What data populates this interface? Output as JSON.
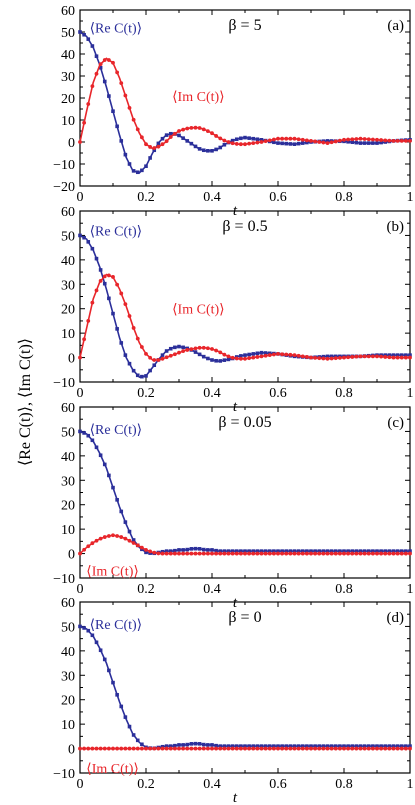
{
  "figure": {
    "ylabel": "⟨Re C(t)⟩,  ⟨Im C(t)⟩"
  },
  "colors": {
    "re": "#2b2f9a",
    "im": "#e8262b",
    "axis": "#000000"
  },
  "chart_data": [
    {
      "type": "line",
      "panel_label": "(a)",
      "annotation": "β = 5",
      "xlabel": "t",
      "xlim": [
        0,
        1
      ],
      "ylim": [
        -20,
        60
      ],
      "xticks": [
        "0",
        "0.2",
        "0.4",
        "0.6",
        "0.8",
        "1"
      ],
      "yticks": [
        "−20",
        "−10",
        "0",
        "10",
        "20",
        "30",
        "40",
        "50",
        "60"
      ],
      "series": [
        {
          "name": "⟨Re C(t)⟩",
          "key": "re",
          "marker": "square",
          "x": [
            0,
            0.02,
            0.04,
            0.06,
            0.08,
            0.1,
            0.12,
            0.14,
            0.16,
            0.18,
            0.2,
            0.22,
            0.24,
            0.26,
            0.28,
            0.3,
            0.32,
            0.34,
            0.36,
            0.38,
            0.4,
            0.42,
            0.44,
            0.46,
            0.48,
            0.5,
            0.55,
            0.6,
            0.65,
            0.7,
            0.75,
            0.8,
            0.85,
            0.9,
            0.95,
            1.0
          ],
          "y": [
            50,
            48,
            43,
            35,
            25,
            14,
            3,
            -7,
            -13,
            -14,
            -11,
            -5,
            0,
            3,
            4,
            3,
            1,
            -1,
            -3,
            -4,
            -4,
            -3,
            -1,
            0.5,
            1.5,
            2,
            1,
            -0.5,
            -1,
            0,
            0.5,
            0.3,
            -0.5,
            -0.5,
            0.5,
            1
          ]
        },
        {
          "name": "⟨Im C(t)⟩",
          "key": "im",
          "marker": "circle",
          "x": [
            0,
            0.02,
            0.04,
            0.06,
            0.08,
            0.1,
            0.12,
            0.14,
            0.16,
            0.18,
            0.2,
            0.22,
            0.24,
            0.26,
            0.28,
            0.3,
            0.32,
            0.34,
            0.36,
            0.38,
            0.4,
            0.42,
            0.44,
            0.46,
            0.48,
            0.5,
            0.55,
            0.6,
            0.65,
            0.7,
            0.75,
            0.8,
            0.85,
            0.9,
            0.95,
            1.0
          ],
          "y": [
            0,
            14,
            27,
            35,
            38,
            36,
            29,
            20,
            11,
            4,
            -1,
            -3,
            -2,
            0,
            3,
            5,
            6,
            6.5,
            6.5,
            5.5,
            4,
            2,
            0.5,
            -0.5,
            -1,
            -1,
            0,
            1.5,
            1.5,
            0.5,
            -0.5,
            1,
            1.5,
            1,
            0.5,
            0.5
          ]
        }
      ]
    },
    {
      "type": "line",
      "panel_label": "(b)",
      "annotation": "β = 0.5",
      "xlabel": "t",
      "xlim": [
        0,
        1
      ],
      "ylim": [
        -10,
        60
      ],
      "xticks": [
        "0",
        "0.2",
        "0.4",
        "0.6",
        "0.8",
        "1"
      ],
      "yticks": [
        "−10",
        "0",
        "10",
        "20",
        "30",
        "40",
        "50",
        "60"
      ],
      "series": [
        {
          "name": "⟨Re C(t)⟩",
          "key": "re",
          "marker": "square",
          "x": [
            0,
            0.02,
            0.04,
            0.06,
            0.08,
            0.1,
            0.12,
            0.14,
            0.16,
            0.18,
            0.2,
            0.22,
            0.24,
            0.26,
            0.28,
            0.3,
            0.32,
            0.34,
            0.36,
            0.38,
            0.4,
            0.42,
            0.44,
            0.46,
            0.48,
            0.5,
            0.55,
            0.6,
            0.65,
            0.7,
            0.75,
            0.8,
            0.85,
            0.9,
            0.95,
            1.0
          ],
          "y": [
            50,
            48.5,
            44,
            37,
            28,
            18,
            8,
            0,
            -5,
            -8,
            -7.5,
            -4,
            -0.5,
            2.5,
            4,
            4.5,
            4,
            3,
            1.5,
            0,
            -1,
            -1.5,
            -1,
            -0.5,
            0.5,
            1,
            2,
            1.5,
            0.5,
            0,
            0.5,
            0.5,
            0.5,
            1,
            1,
            1
          ]
        },
        {
          "name": "⟨Im C(t)⟩",
          "key": "im",
          "marker": "circle",
          "x": [
            0,
            0.02,
            0.04,
            0.06,
            0.08,
            0.1,
            0.12,
            0.14,
            0.16,
            0.18,
            0.2,
            0.22,
            0.24,
            0.26,
            0.28,
            0.3,
            0.32,
            0.34,
            0.36,
            0.38,
            0.4,
            0.42,
            0.44,
            0.46,
            0.48,
            0.5,
            0.55,
            0.6,
            0.65,
            0.7,
            0.75,
            0.8,
            0.85,
            0.9,
            0.95,
            1.0
          ],
          "y": [
            0,
            12,
            24,
            31,
            34,
            33,
            28,
            21,
            13,
            6,
            1.5,
            -1,
            -1,
            0,
            1,
            2,
            3,
            3.5,
            4,
            4,
            3.5,
            2.5,
            1,
            0,
            -0.5,
            -0.5,
            0.5,
            1.5,
            1,
            0,
            -0.5,
            0,
            0.5,
            0.5,
            0,
            0
          ]
        }
      ]
    },
    {
      "type": "line",
      "panel_label": "(c)",
      "annotation": "β = 0.05",
      "xlabel": "t",
      "xlim": [
        0,
        1
      ],
      "ylim": [
        -10,
        60
      ],
      "xticks": [
        "0",
        "0.2",
        "0.4",
        "0.6",
        "0.8",
        "1"
      ],
      "yticks": [
        "−10",
        "0",
        "10",
        "20",
        "30",
        "40",
        "50",
        "60"
      ],
      "series": [
        {
          "name": "⟨Re C(t)⟩",
          "key": "re",
          "marker": "square",
          "x": [
            0,
            0.02,
            0.04,
            0.06,
            0.08,
            0.1,
            0.12,
            0.14,
            0.16,
            0.18,
            0.2,
            0.22,
            0.24,
            0.26,
            0.28,
            0.3,
            0.32,
            0.34,
            0.36,
            0.38,
            0.4,
            0.42,
            0.44,
            0.46,
            0.48,
            0.5,
            0.55,
            0.6,
            0.65,
            0.7,
            0.75,
            0.8,
            0.85,
            0.9,
            0.95,
            1.0
          ],
          "y": [
            50,
            49,
            46,
            41,
            35,
            27,
            19,
            12,
            6,
            2.5,
            0.5,
            0,
            0.5,
            1,
            1,
            1.5,
            1.5,
            2,
            2,
            1.5,
            1.5,
            1,
            1,
            1,
            1,
            1,
            1,
            1,
            1,
            1,
            1,
            1,
            1,
            1,
            1,
            1
          ]
        },
        {
          "name": "⟨Im C(t)⟩",
          "key": "im",
          "marker": "circle",
          "x": [
            0,
            0.02,
            0.04,
            0.06,
            0.08,
            0.1,
            0.12,
            0.14,
            0.16,
            0.18,
            0.2,
            0.22,
            0.24,
            0.26,
            0.28,
            0.3,
            0.32,
            0.34,
            0.36,
            0.38,
            0.4,
            0.42,
            0.44,
            0.46,
            0.48,
            0.5,
            0.55,
            0.6,
            0.65,
            0.7,
            0.75,
            0.8,
            0.85,
            0.9,
            0.95,
            1.0
          ],
          "y": [
            0,
            2.5,
            4.5,
            6,
            7,
            7.5,
            7,
            6,
            4.5,
            3,
            1.5,
            0.5,
            0,
            0,
            0,
            0,
            0,
            0,
            0,
            0,
            0,
            0,
            0,
            0,
            0,
            0,
            0,
            0,
            0,
            0,
            0,
            0,
            0,
            0,
            0,
            0
          ]
        }
      ]
    },
    {
      "type": "line",
      "panel_label": "(d)",
      "annotation": "β = 0",
      "xlabel": "t",
      "xlim": [
        0,
        1
      ],
      "ylim": [
        -10,
        60
      ],
      "xticks": [
        "0",
        "0.2",
        "0.4",
        "0.6",
        "0.8",
        "1"
      ],
      "yticks": [
        "−10",
        "0",
        "10",
        "20",
        "30",
        "40",
        "50",
        "60"
      ],
      "series": [
        {
          "name": "⟨Re C(t)⟩",
          "key": "re",
          "marker": "square",
          "x": [
            0,
            0.02,
            0.04,
            0.06,
            0.08,
            0.1,
            0.12,
            0.14,
            0.16,
            0.18,
            0.2,
            0.22,
            0.24,
            0.26,
            0.28,
            0.3,
            0.32,
            0.34,
            0.36,
            0.38,
            0.4,
            0.42,
            0.44,
            0.46,
            0.48,
            0.5,
            0.55,
            0.6,
            0.65,
            0.7,
            0.75,
            0.8,
            0.85,
            0.9,
            0.95,
            1.0
          ],
          "y": [
            50,
            49,
            46,
            41,
            35,
            27,
            19,
            12,
            6,
            2.5,
            0.5,
            0,
            0.5,
            1,
            1,
            1.5,
            1.5,
            2,
            2,
            1.5,
            1.5,
            1,
            1,
            1,
            1,
            1,
            1,
            1,
            1,
            1,
            1,
            1,
            1,
            1,
            1,
            1
          ]
        },
        {
          "name": "⟨Im C(t)⟩",
          "key": "im",
          "marker": "circle",
          "x": [
            0,
            0.02,
            0.04,
            0.06,
            0.08,
            0.1,
            0.12,
            0.14,
            0.16,
            0.18,
            0.2,
            0.22,
            0.24,
            0.26,
            0.28,
            0.3,
            0.32,
            0.34,
            0.36,
            0.38,
            0.4,
            0.42,
            0.44,
            0.46,
            0.48,
            0.5,
            0.55,
            0.6,
            0.65,
            0.7,
            0.75,
            0.8,
            0.85,
            0.9,
            0.95,
            1.0
          ],
          "y": [
            0,
            0,
            0,
            0,
            0,
            0,
            0,
            0,
            0,
            0,
            0,
            0,
            0,
            0,
            0,
            0,
            0,
            0,
            0,
            0,
            0,
            0,
            0,
            0,
            0,
            0,
            0,
            0,
            0,
            0,
            0,
            0,
            0,
            0,
            0,
            0
          ]
        }
      ]
    }
  ]
}
